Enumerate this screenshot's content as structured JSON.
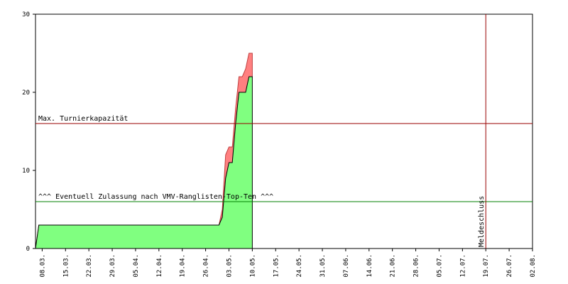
{
  "chart_data": {
    "type": "area",
    "x": [
      "06.03.",
      "07.03.",
      "30.04.",
      "01.05.",
      "02.05.",
      "03.05.",
      "04.05.",
      "05.05.",
      "06.05.",
      "07.05.",
      "08.05.",
      "09.05.",
      "10.05."
    ],
    "series": [
      {
        "color": "#80ff80",
        "values": [
          0,
          3,
          3,
          4,
          9,
          11,
          11,
          16,
          20,
          20,
          20,
          22,
          22
        ]
      },
      {
        "color": "#ff8080",
        "values": [
          0,
          0,
          0,
          1,
          3,
          2,
          2,
          2,
          2,
          2,
          3,
          3,
          3
        ]
      }
    ],
    "xlim": [
      "06.03.",
      "02.08."
    ],
    "xticks": [
      "08.03.",
      "15.03.",
      "22.03.",
      "29.03.",
      "05.04.",
      "12.04.",
      "19.04.",
      "26.04.",
      "03.05.",
      "10.05.",
      "17.05.",
      "24.05.",
      "31.05.",
      "07.06.",
      "14.06.",
      "21.06.",
      "28.06.",
      "05.07.",
      "12.07.",
      "19.07.",
      "26.07.",
      "02.08."
    ],
    "ylim": [
      0,
      30
    ],
    "yticks": [
      0,
      10,
      20,
      30
    ],
    "reference_lines": [
      {
        "axis": "y",
        "value": 16,
        "label": "Max. Turnierkapazität",
        "color": "#990000"
      },
      {
        "axis": "y",
        "value": 6,
        "label": "^^^ Eventuell Zulassung nach VMV-Ranglisten-Top-Ten ^^^",
        "color": "#008000"
      },
      {
        "axis": "x",
        "value": "19.07.",
        "label": "Meldeschluss",
        "color": "#990000"
      }
    ]
  }
}
